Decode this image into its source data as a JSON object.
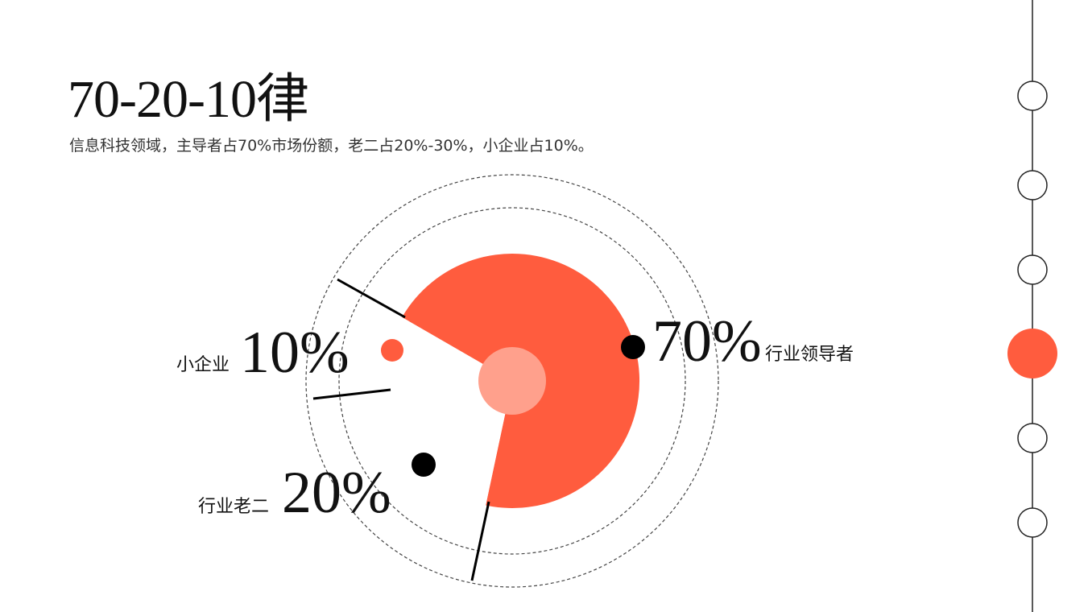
{
  "title": "70-20-10律",
  "subtitle": "信息科技领域，主导者占70%市场份额，老二占20%-30%，小企业占10%。",
  "chart_data": {
    "type": "pie",
    "segments": [
      {
        "key": "leader",
        "label": "行业领导者",
        "value_label": "70%",
        "value": 70,
        "color": "#FF5C3E"
      },
      {
        "key": "second",
        "label": "行业老二",
        "value_label": "20%",
        "value": 20,
        "color": "#FFFFFF"
      },
      {
        "key": "small",
        "label": "小企业",
        "value_label": "10%",
        "value": 10,
        "color": "#FFFFFF"
      }
    ],
    "accent_color": "#FF5C3E",
    "center_color": "#FFA08C"
  },
  "timeline": {
    "active_index": 3,
    "node_count": 6,
    "active_color": "#FF5C3E"
  }
}
